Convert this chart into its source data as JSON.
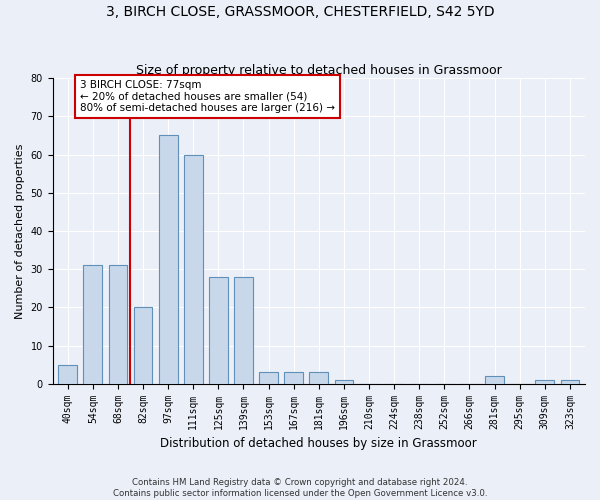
{
  "title1": "3, BIRCH CLOSE, GRASSMOOR, CHESTERFIELD, S42 5YD",
  "title2": "Size of property relative to detached houses in Grassmoor",
  "xlabel": "Distribution of detached houses by size in Grassmoor",
  "ylabel": "Number of detached properties",
  "footer1": "Contains HM Land Registry data © Crown copyright and database right 2024.",
  "footer2": "Contains public sector information licensed under the Open Government Licence v3.0.",
  "bin_labels": [
    "40sqm",
    "54sqm",
    "68sqm",
    "82sqm",
    "97sqm",
    "111sqm",
    "125sqm",
    "139sqm",
    "153sqm",
    "167sqm",
    "181sqm",
    "196sqm",
    "210sqm",
    "224sqm",
    "238sqm",
    "252sqm",
    "266sqm",
    "281sqm",
    "295sqm",
    "309sqm",
    "323sqm"
  ],
  "bar_values": [
    5,
    31,
    31,
    20,
    65,
    60,
    28,
    28,
    3,
    3,
    3,
    1,
    0,
    0,
    0,
    0,
    0,
    2,
    0,
    1,
    1
  ],
  "bar_color": "#c8d8ea",
  "bar_edge_color": "#6090b8",
  "annotation_box_text": "3 BIRCH CLOSE: 77sqm\n← 20% of detached houses are smaller (54)\n80% of semi-detached houses are larger (216) →",
  "vline_color": "#cc0000",
  "vline_x": 2.5,
  "ylim": [
    0,
    80
  ],
  "yticks": [
    0,
    10,
    20,
    30,
    40,
    50,
    60,
    70,
    80
  ],
  "bg_color": "#eaeff8",
  "plot_bg_color": "#eaeff8",
  "grid_color": "#ffffff",
  "title1_fontsize": 10,
  "title2_fontsize": 9,
  "xlabel_fontsize": 8.5,
  "ylabel_fontsize": 8,
  "tick_fontsize": 7,
  "annotation_fontsize": 7.5,
  "bar_width": 0.75
}
